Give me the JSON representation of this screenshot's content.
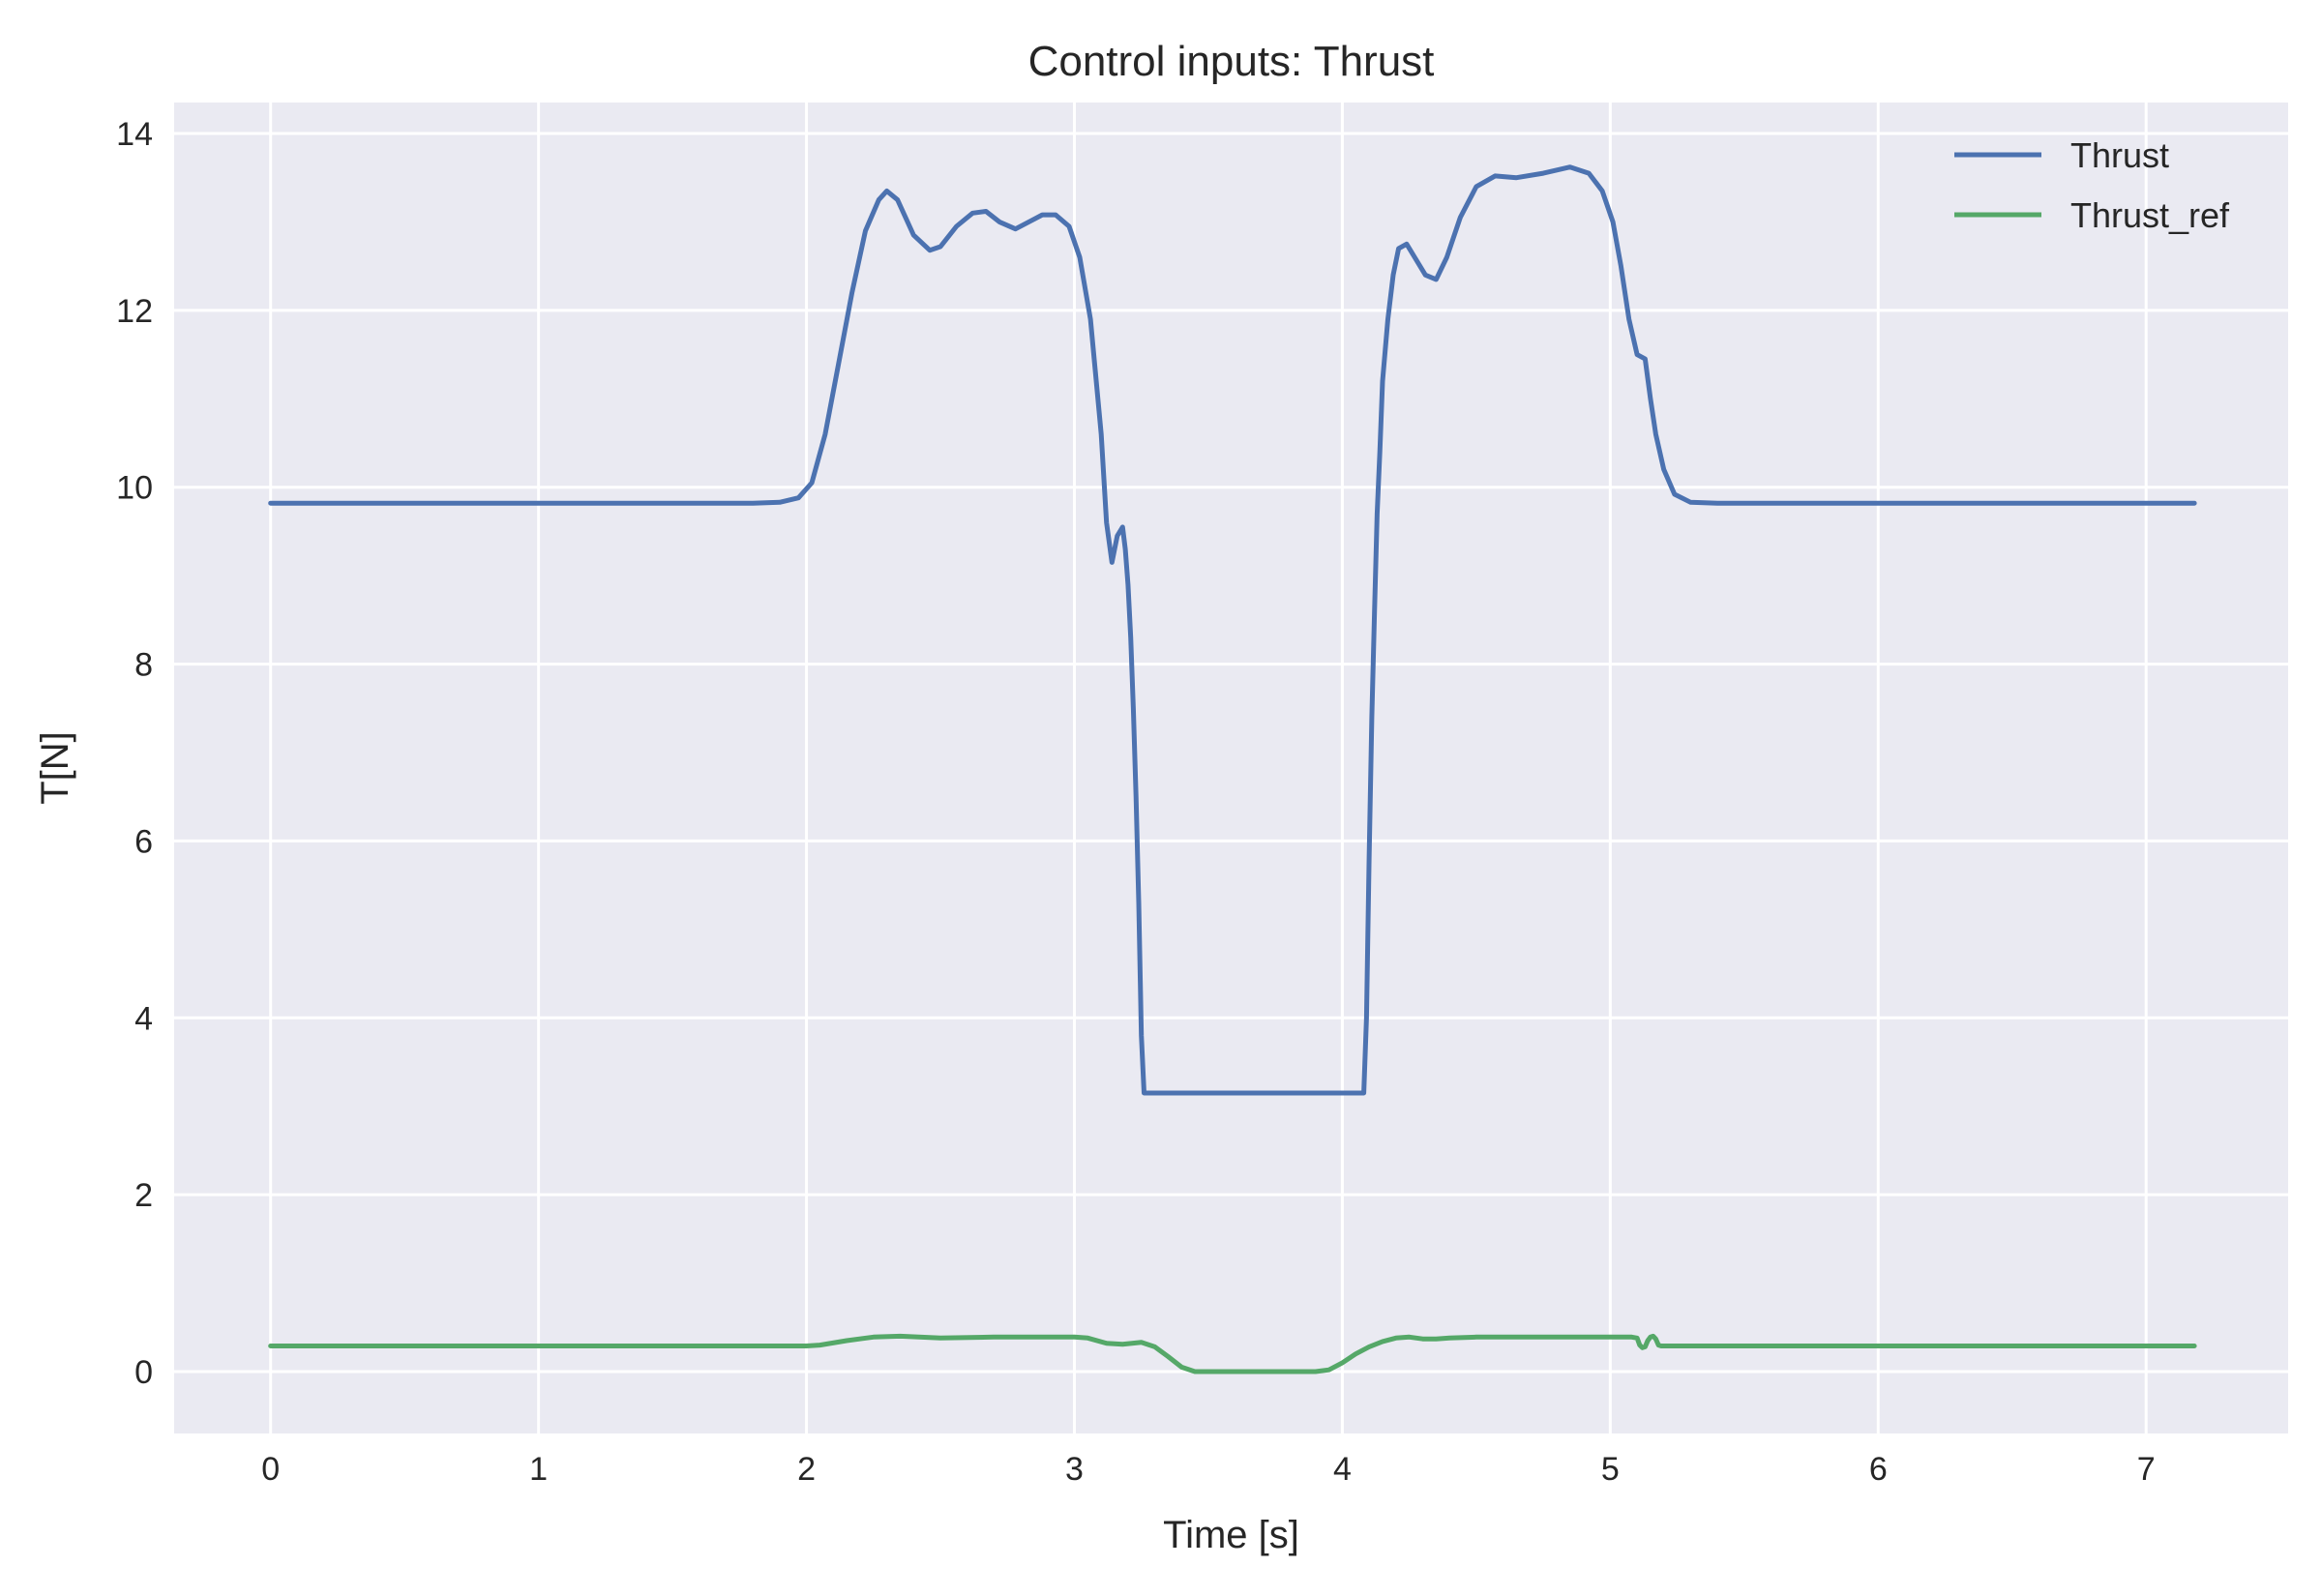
{
  "chart_data": {
    "type": "line",
    "title": "Control inputs: Thrust",
    "xlabel": "Time [s]",
    "ylabel": "T[N]",
    "xlim": [
      -0.36,
      7.53
    ],
    "ylim": [
      -0.7,
      14.35
    ],
    "xticks": [
      0,
      1,
      2,
      3,
      4,
      5,
      6,
      7
    ],
    "yticks": [
      0,
      2,
      4,
      6,
      8,
      10,
      12,
      14
    ],
    "xtick_labels": [
      "0",
      "1",
      "2",
      "3",
      "4",
      "5",
      "6",
      "7"
    ],
    "ytick_labels": [
      "0",
      "2",
      "4",
      "6",
      "8",
      "10",
      "12",
      "14"
    ],
    "grid": true,
    "legend_position": "top-right",
    "background_color": "#eaeaf2",
    "grid_color": "#ffffff",
    "series": [
      {
        "name": "Thrust",
        "color": "#4c72b0",
        "x": [
          0,
          1.8,
          1.9,
          1.97,
          2.02,
          2.07,
          2.12,
          2.17,
          2.22,
          2.27,
          2.3,
          2.34,
          2.4,
          2.46,
          2.5,
          2.56,
          2.62,
          2.67,
          2.72,
          2.78,
          2.83,
          2.88,
          2.93,
          2.98,
          3.02,
          3.06,
          3.1,
          3.12,
          3.14,
          3.16,
          3.18,
          3.19,
          3.2,
          3.21,
          3.22,
          3.23,
          3.24,
          3.25,
          3.26,
          3.27,
          3.28,
          3.29,
          3.3,
          3.35,
          4.08,
          4.09,
          4.1,
          4.11,
          4.12,
          4.13,
          4.14,
          4.15,
          4.17,
          4.19,
          4.21,
          4.24,
          4.27,
          4.31,
          4.35,
          4.39,
          4.44,
          4.5,
          4.57,
          4.65,
          4.75,
          4.85,
          4.92,
          4.97,
          5.01,
          5.04,
          5.07,
          5.1,
          5.13,
          5.15,
          5.17,
          5.2,
          5.24,
          5.3,
          5.4,
          5.5,
          6,
          7.18
        ],
        "y": [
          9.82,
          9.82,
          9.83,
          9.88,
          10.05,
          10.6,
          11.4,
          12.2,
          12.9,
          13.25,
          13.35,
          13.25,
          12.85,
          12.68,
          12.72,
          12.95,
          13.1,
          13.12,
          13.0,
          12.92,
          13.0,
          13.08,
          13.08,
          12.95,
          12.6,
          11.9,
          10.6,
          9.6,
          9.15,
          9.45,
          9.55,
          9.3,
          8.9,
          8.3,
          7.5,
          6.5,
          5.3,
          3.8,
          3.15,
          3.15,
          3.15,
          3.15,
          3.15,
          3.15,
          3.15,
          4.0,
          5.8,
          7.4,
          8.6,
          9.7,
          10.4,
          11.2,
          11.9,
          12.4,
          12.7,
          12.75,
          12.6,
          12.4,
          12.35,
          12.6,
          13.05,
          13.4,
          13.52,
          13.5,
          13.55,
          13.62,
          13.55,
          13.35,
          13.0,
          12.5,
          11.9,
          11.5,
          11.45,
          11.0,
          10.6,
          10.2,
          9.92,
          9.83,
          9.82,
          9.82,
          9.82,
          9.82
        ]
      },
      {
        "name": "Thrust_ref",
        "color": "#55a868",
        "x": [
          0,
          2.0,
          2.05,
          2.15,
          2.25,
          2.35,
          2.5,
          2.7,
          2.85,
          3.0,
          3.05,
          3.12,
          3.18,
          3.25,
          3.3,
          3.35,
          3.4,
          3.45,
          3.5,
          3.9,
          3.95,
          4.0,
          4.05,
          4.1,
          4.15,
          4.2,
          4.25,
          4.3,
          4.35,
          4.4,
          4.5,
          4.7,
          4.9,
          5.08,
          5.1,
          5.11,
          5.12,
          5.13,
          5.14,
          5.15,
          5.16,
          5.17,
          5.18,
          5.19,
          5.25,
          6,
          7.18
        ],
        "y": [
          0.29,
          0.29,
          0.3,
          0.35,
          0.39,
          0.4,
          0.38,
          0.39,
          0.39,
          0.39,
          0.38,
          0.32,
          0.31,
          0.33,
          0.28,
          0.17,
          0.05,
          0.0,
          0.0,
          0.0,
          0.02,
          0.1,
          0.2,
          0.28,
          0.34,
          0.38,
          0.39,
          0.37,
          0.37,
          0.38,
          0.39,
          0.39,
          0.39,
          0.39,
          0.38,
          0.3,
          0.27,
          0.28,
          0.35,
          0.39,
          0.4,
          0.37,
          0.3,
          0.29,
          0.29,
          0.29,
          0.29
        ]
      }
    ]
  }
}
